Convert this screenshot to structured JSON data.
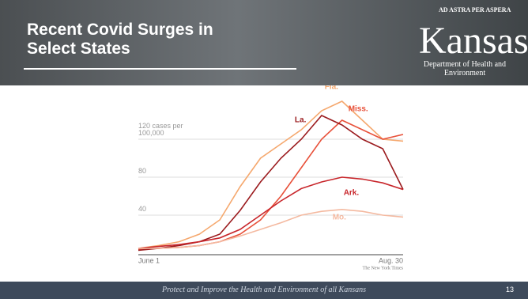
{
  "slide": {
    "title": "Recent Covid Surges in Select States",
    "logo": "Kansas",
    "motto": "AD ASTRA PER ASPERA",
    "department": "Department of Health and Environment",
    "footer": "Protect and Improve the Health and Environment of all Kansans",
    "page": "13"
  },
  "chart_data": {
    "type": "line",
    "source": "The New York Times",
    "categories": [
      "June 1",
      null,
      null,
      null,
      null,
      null,
      null,
      null,
      null,
      null,
      null,
      null,
      null,
      "Aug. 30"
    ],
    "ylim": [
      0,
      170
    ],
    "yticks": [
      40,
      80,
      {
        "value": 120,
        "label": "120 cases per 100,000"
      }
    ],
    "grid": true,
    "series": [
      {
        "name": "Fla.",
        "color": "#f5a86e",
        "values": [
          5,
          8,
          12,
          20,
          35,
          70,
          100,
          115,
          130,
          150,
          160,
          140,
          120,
          118
        ]
      },
      {
        "name": "Miss.",
        "color": "#e8513a",
        "values": [
          4,
          5,
          6,
          8,
          12,
          20,
          35,
          60,
          90,
          120,
          140,
          130,
          120,
          125
        ]
      },
      {
        "name": "La.",
        "color": "#9b1b1e",
        "values": [
          3,
          5,
          8,
          12,
          20,
          45,
          75,
          100,
          120,
          145,
          135,
          120,
          110,
          67
        ]
      },
      {
        "name": "Ark.",
        "color": "#c8262b",
        "values": [
          5,
          7,
          9,
          12,
          16,
          25,
          40,
          55,
          68,
          75,
          80,
          78,
          74,
          67
        ]
      },
      {
        "name": "Mo.",
        "color": "#f4b9a0",
        "values": [
          5,
          5,
          6,
          8,
          12,
          18,
          25,
          32,
          40,
          44,
          46,
          44,
          40,
          38
        ]
      }
    ]
  }
}
